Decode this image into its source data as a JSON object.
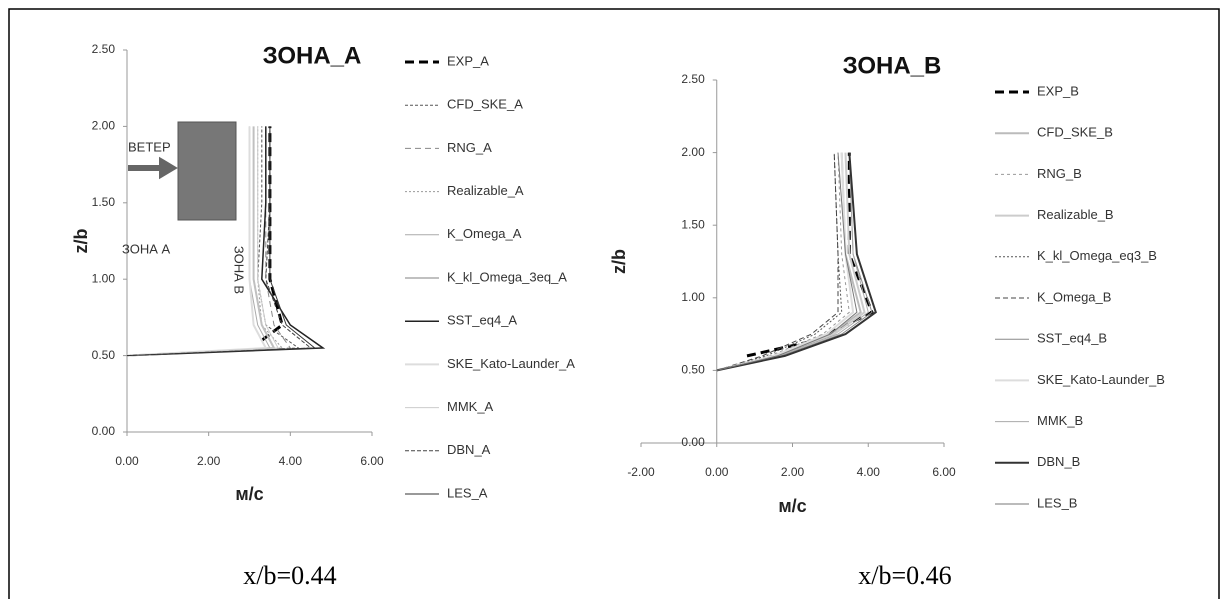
{
  "chart_data": [
    {
      "type": "line",
      "title": "ЗОНА_A",
      "xlabel": "м/с",
      "ylabel": "z/b",
      "caption": "x/b=0.44",
      "annotations": [
        "ВЕТЕР",
        "ЗОНА А",
        "ЗОНА В"
      ],
      "xlim": [
        0,
        6
      ],
      "ylim": [
        0,
        2.5
      ],
      "xticks": [
        {
          "value": 0,
          "label": "0.00"
        },
        {
          "value": 2,
          "label": "2.00"
        },
        {
          "value": 4,
          "label": "4.00"
        },
        {
          "value": 6,
          "label": "6.00"
        }
      ],
      "yticks": [
        {
          "value": 0,
          "label": "0.00"
        },
        {
          "value": 0.5,
          "label": "0.50"
        },
        {
          "value": 1,
          "label": "1.00"
        },
        {
          "value": 1.5,
          "label": "1.50"
        },
        {
          "value": 2,
          "label": "2.00"
        },
        {
          "value": 2.5,
          "label": "2.50"
        }
      ],
      "series": [
        {
          "name": "EXP_A",
          "color": "#000000",
          "width": 3,
          "dash": "9,5",
          "x": [
            3.3,
            3.8,
            3.5,
            3.5,
            3.5
          ],
          "values": [
            0.6,
            0.7,
            1.0,
            1.5,
            2.0
          ]
        },
        {
          "name": "CFD_SKE_A",
          "color": "#555555",
          "width": 1,
          "dash": "3,2",
          "x": [
            0,
            4.2,
            3.4,
            3.2,
            3.3,
            3.3
          ],
          "values": [
            0.5,
            0.55,
            0.7,
            1.0,
            1.5,
            2.0
          ]
        },
        {
          "name": "RNG_A",
          "color": "#888888",
          "width": 1,
          "dash": "6,4",
          "x": [
            0,
            4.0,
            3.6,
            3.4,
            3.4,
            3.4
          ],
          "values": [
            0.5,
            0.55,
            0.7,
            1.0,
            1.5,
            2.0
          ]
        },
        {
          "name": "Realizable_A",
          "color": "#999999",
          "width": 1,
          "dash": "2,2",
          "x": [
            0,
            3.8,
            3.3,
            3.2,
            3.2,
            3.2
          ],
          "values": [
            0.5,
            0.55,
            0.7,
            1.0,
            1.5,
            2.0
          ]
        },
        {
          "name": "K_Omega_A",
          "color": "#aaaaaa",
          "width": 1,
          "dash": "none",
          "x": [
            0,
            3.5,
            3.2,
            3.0,
            3.0,
            3.0
          ],
          "values": [
            0.5,
            0.55,
            0.7,
            1.0,
            1.5,
            2.0
          ]
        },
        {
          "name": "K_kl_Omega_3eq_A",
          "color": "#c0c0c0",
          "width": 2,
          "dash": "none",
          "x": [
            0,
            3.6,
            3.3,
            3.1,
            3.1,
            3.1
          ],
          "values": [
            0.5,
            0.55,
            0.7,
            1.0,
            1.5,
            2.0
          ]
        },
        {
          "name": "SST_eq4_A",
          "color": "#222222",
          "width": 1.5,
          "dash": "none",
          "x": [
            0,
            4.8,
            4.0,
            3.3,
            3.4,
            3.4
          ],
          "values": [
            0.5,
            0.55,
            0.7,
            1.0,
            1.5,
            2.0
          ]
        },
        {
          "name": "SKE_Kato-Launder_A",
          "color": "#dddddd",
          "width": 2,
          "dash": "none",
          "x": [
            0,
            3.4,
            3.1,
            3.0,
            3.0,
            3.0
          ],
          "values": [
            0.5,
            0.55,
            0.7,
            1.0,
            1.5,
            2.0
          ]
        },
        {
          "name": "MMK_A",
          "color": "#cccccc",
          "width": 1,
          "dash": "none",
          "x": [
            0,
            3.7,
            3.4,
            3.2,
            3.2,
            3.2
          ],
          "values": [
            0.5,
            0.55,
            0.7,
            1.0,
            1.5,
            2.0
          ]
        },
        {
          "name": "DBN_A",
          "color": "#444444",
          "width": 1,
          "dash": "4,2",
          "x": [
            0,
            4.5,
            3.8,
            3.4,
            3.5,
            3.5
          ],
          "values": [
            0.5,
            0.55,
            0.7,
            1.0,
            1.5,
            2.0
          ]
        },
        {
          "name": "LES_A",
          "color": "#333333",
          "width": 1,
          "dash": "none",
          "x": [
            0,
            4.6,
            3.9,
            3.5,
            3.5,
            3.5
          ],
          "values": [
            0.5,
            0.55,
            0.7,
            1.0,
            1.5,
            2.0
          ]
        }
      ]
    },
    {
      "type": "line",
      "title": "ЗОНА_B",
      "xlabel": "м/с",
      "ylabel": "z/b",
      "caption": "x/b=0.46",
      "xlim": [
        -2,
        6
      ],
      "ylim": [
        0,
        2.5
      ],
      "xticks": [
        {
          "value": -2,
          "label": "-2.00"
        },
        {
          "value": 0,
          "label": "0.00"
        },
        {
          "value": 2,
          "label": "2.00"
        },
        {
          "value": 4,
          "label": "4.00"
        },
        {
          "value": 6,
          "label": "6.00"
        }
      ],
      "yticks": [
        {
          "value": 0,
          "label": "0.00"
        },
        {
          "value": 0.5,
          "label": "0.50"
        },
        {
          "value": 1,
          "label": "1.00"
        },
        {
          "value": 1.5,
          "label": "1.50"
        },
        {
          "value": 2,
          "label": "2.00"
        },
        {
          "value": 2.5,
          "label": "2.50"
        }
      ],
      "series": [
        {
          "name": "EXP_B",
          "color": "#000000",
          "width": 3,
          "dash": "9,5",
          "x": [
            0.8,
            2.5,
            4.1,
            3.5,
            3.5
          ],
          "values": [
            0.6,
            0.7,
            0.9,
            1.3,
            2.0
          ]
        },
        {
          "name": "CFD_SKE_B",
          "color": "#bbbbbb",
          "width": 2,
          "dash": "none",
          "x": [
            0,
            1.5,
            3.0,
            3.8,
            3.4,
            3.3
          ],
          "values": [
            0.5,
            0.6,
            0.75,
            0.9,
            1.3,
            2.0
          ]
        },
        {
          "name": "RNG_B",
          "color": "#999999",
          "width": 1,
          "dash": "3,3",
          "x": [
            0,
            1.4,
            2.8,
            3.5,
            3.3,
            3.2
          ],
          "values": [
            0.5,
            0.6,
            0.75,
            0.9,
            1.3,
            2.0
          ]
        },
        {
          "name": "Realizable_B",
          "color": "#cccccc",
          "width": 2,
          "dash": "none",
          "x": [
            0,
            1.6,
            3.1,
            3.9,
            3.5,
            3.4
          ],
          "values": [
            0.5,
            0.6,
            0.75,
            0.9,
            1.3,
            2.0
          ]
        },
        {
          "name": "K_kl_Omega_eq3_B",
          "color": "#555555",
          "width": 1,
          "dash": "2,2",
          "x": [
            0,
            1.3,
            2.6,
            3.3,
            3.2,
            3.1
          ],
          "values": [
            0.5,
            0.6,
            0.75,
            0.9,
            1.3,
            2.0
          ]
        },
        {
          "name": "K_Omega_B",
          "color": "#444444",
          "width": 1,
          "dash": "5,3",
          "x": [
            0,
            1.2,
            2.5,
            3.2,
            3.2,
            3.1
          ],
          "values": [
            0.5,
            0.6,
            0.75,
            0.9,
            1.3,
            2.0
          ]
        },
        {
          "name": "SST_eq4_B",
          "color": "#888888",
          "width": 1,
          "dash": "none",
          "x": [
            0,
            1.7,
            3.3,
            4.1,
            3.6,
            3.5
          ],
          "values": [
            0.5,
            0.6,
            0.75,
            0.9,
            1.3,
            2.0
          ]
        },
        {
          "name": "SKE_Kato-Launder_B",
          "color": "#dddddd",
          "width": 2,
          "dash": "none",
          "x": [
            0,
            1.5,
            2.9,
            3.6,
            3.4,
            3.3
          ],
          "values": [
            0.5,
            0.6,
            0.75,
            0.9,
            1.3,
            2.0
          ]
        },
        {
          "name": "MMK_B",
          "color": "#aaaaaa",
          "width": 1,
          "dash": "none",
          "x": [
            0,
            1.6,
            3.2,
            4.0,
            3.6,
            3.5
          ],
          "values": [
            0.5,
            0.6,
            0.75,
            0.9,
            1.3,
            2.0
          ]
        },
        {
          "name": "DBN_B",
          "color": "#333333",
          "width": 2,
          "dash": "none",
          "x": [
            0,
            1.8,
            3.4,
            4.2,
            3.7,
            3.5
          ],
          "values": [
            0.5,
            0.6,
            0.75,
            0.9,
            1.3,
            2.0
          ]
        },
        {
          "name": "LES_B",
          "color": "#777777",
          "width": 1,
          "dash": "none",
          "x": [
            0,
            1.6,
            3.0,
            3.7,
            3.4,
            3.2
          ],
          "values": [
            0.5,
            0.6,
            0.75,
            0.9,
            1.3,
            2.0
          ]
        }
      ]
    }
  ]
}
